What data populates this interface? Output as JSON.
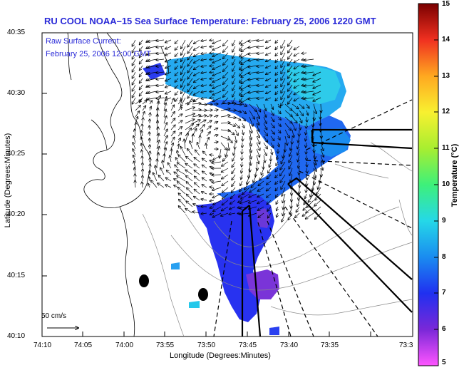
{
  "title": "RU COOL  NOAA–15  Sea Surface Temperature:  February 25, 2006 1220 GMT",
  "legend": {
    "line1": "Raw Surface Current:",
    "line2": "February 25, 2006 12:00 GMT"
  },
  "axes": {
    "y_label": "Latitude (Degrees:Minutes)",
    "x_label": "Longitude (Degrees:Minutes)",
    "y_ticks": [
      "40:35",
      "40:30",
      "40:25",
      "40:20",
      "40:15",
      "40:10"
    ],
    "x_ticks": [
      "74:10",
      "74:05",
      "74:00",
      "73:55",
      "73:50",
      "73:45",
      "73:40",
      "73:35",
      "73:3"
    ]
  },
  "scale_label": "50 cm/s",
  "colorbar": {
    "label": "Temperature (°C)",
    "ticks": [
      "15",
      "14",
      "13",
      "12",
      "11",
      "10",
      "9",
      "8",
      "7",
      "6",
      "5"
    ],
    "colors": [
      "#ff55ff",
      "#7a28d8",
      "#2030f0",
      "#1a8cf0",
      "#25d8e8",
      "#3ef07a",
      "#a8ee30",
      "#f8f030",
      "#ffa820",
      "#f03020",
      "#7a0000"
    ]
  }
}
